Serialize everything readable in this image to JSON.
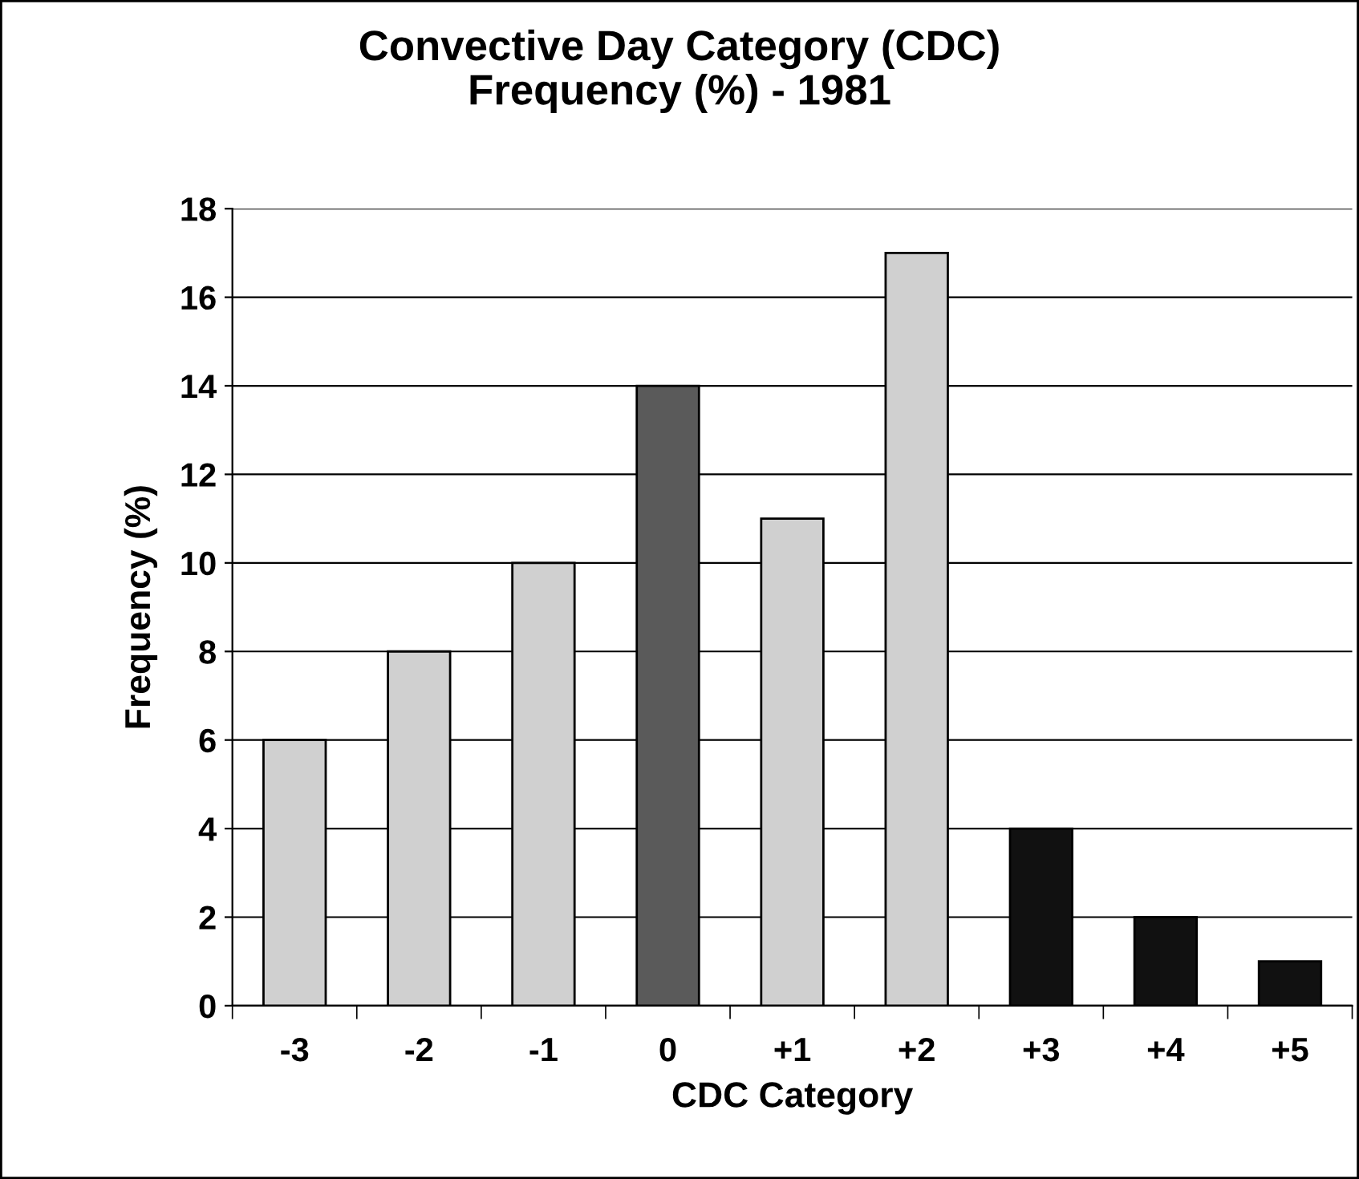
{
  "chart_data": {
    "type": "bar",
    "title": "Convective Day Category (CDC)\nFrequency (%) - 1981",
    "xlabel": "CDC Category",
    "ylabel": "Frequency (%)",
    "categories": [
      "-3",
      "-2",
      "-1",
      "0",
      "+1",
      "+2",
      "+3",
      "+4",
      "+5"
    ],
    "values": [
      6,
      8,
      10,
      14,
      11,
      17,
      4,
      2,
      1
    ],
    "colors": [
      "#d0d0d0",
      "#d0d0d0",
      "#d0d0d0",
      "#5a5a5a",
      "#d0d0d0",
      "#d0d0d0",
      "#111111",
      "#111111",
      "#111111"
    ],
    "ylim": [
      0,
      18
    ],
    "yticks": [
      0,
      2,
      4,
      6,
      8,
      10,
      12,
      14,
      16,
      18
    ],
    "grid": "y",
    "legend": false
  }
}
